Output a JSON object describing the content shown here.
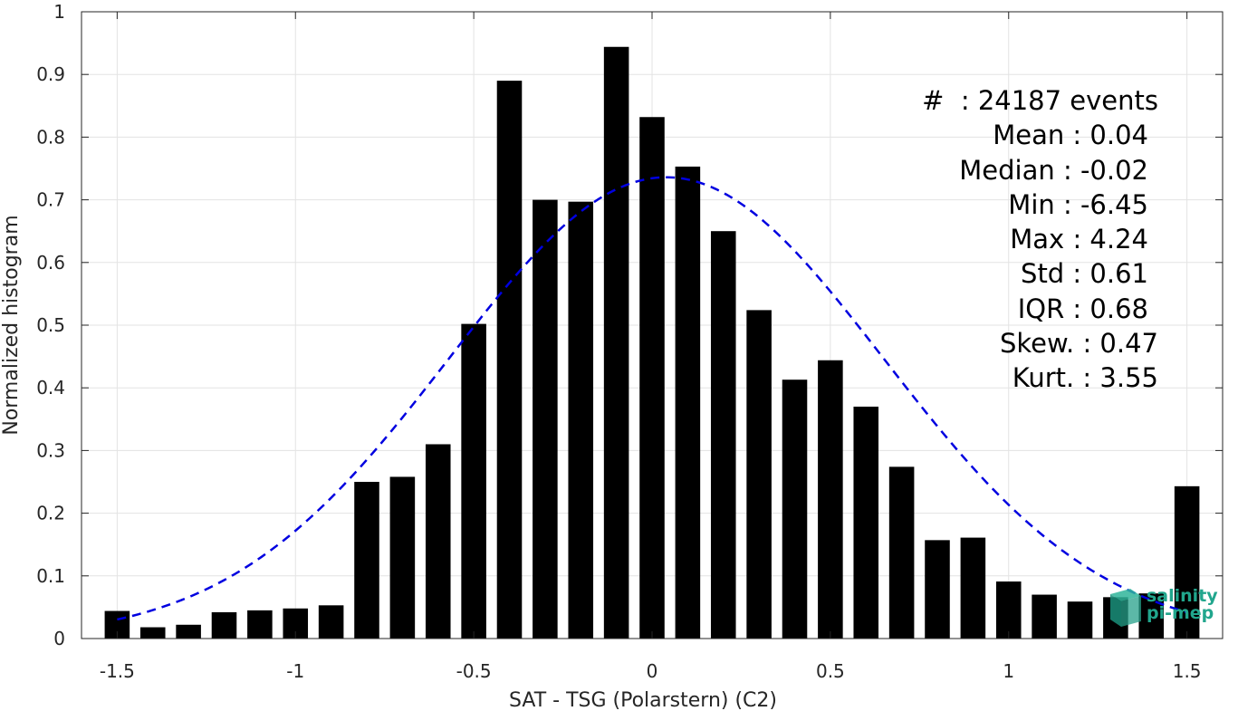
{
  "chart_data": {
    "type": "bar",
    "xlabel": "SAT - TSG (Polarstern) (C2)",
    "ylabel": "Normalized histogram",
    "xlim": [
      -1.6,
      1.6
    ],
    "ylim": [
      0,
      1
    ],
    "grid": true,
    "x_ticks": [
      -1.5,
      -1,
      -0.5,
      0,
      0.5,
      1,
      1.5
    ],
    "x_tick_labels": [
      "-1.5",
      "-1",
      "-0.5",
      "0",
      "0.5",
      "1",
      "1.5"
    ],
    "y_ticks": [
      0,
      0.1,
      0.2,
      0.3,
      0.4,
      0.5,
      0.6,
      0.7,
      0.8,
      0.9,
      1
    ],
    "y_tick_labels": [
      "0",
      "0.1",
      "0.2",
      "0.3",
      "0.4",
      "0.5",
      "0.6",
      "0.7",
      "0.8",
      "0.9",
      "1"
    ],
    "bin_width": 0.1,
    "bar_fraction": 0.7,
    "bar_color": "#000000",
    "x": [
      -1.5,
      -1.4,
      -1.3,
      -1.2,
      -1.1,
      -1.0,
      -0.9,
      -0.8,
      -0.7,
      -0.6,
      -0.5,
      -0.4,
      -0.3,
      -0.2,
      -0.1,
      0.0,
      0.1,
      0.2,
      0.3,
      0.4,
      0.5,
      0.6,
      0.7,
      0.8,
      0.9,
      1.0,
      1.1,
      1.2,
      1.3,
      1.4,
      1.5
    ],
    "values": [
      0.044,
      0.018,
      0.022,
      0.042,
      0.045,
      0.048,
      0.053,
      0.25,
      0.258,
      0.31,
      0.502,
      0.89,
      0.7,
      0.697,
      0.944,
      0.832,
      0.753,
      0.65,
      0.524,
      0.413,
      0.444,
      0.37,
      0.274,
      0.157,
      0.161,
      0.091,
      0.07,
      0.059,
      0.066,
      0.072,
      0.243
    ],
    "fit_curve": {
      "type": "normal",
      "mean": 0.04,
      "std": 0.61,
      "peak": 0.736,
      "x_range": [
        -1.5,
        1.5
      ],
      "color": "#0000e0",
      "style": "dashed"
    },
    "annotations": [
      "#  : 24187 events",
      "Mean : 0.04",
      "Median : -0.02",
      "Min : -6.45",
      "Max : 4.24",
      "Std : 0.61",
      "IQR : 0.68",
      "Skew. : 0.47",
      "Kurt. : 3.55"
    ]
  },
  "logo": {
    "line1": "salinity",
    "line2": "pi-mep"
  }
}
